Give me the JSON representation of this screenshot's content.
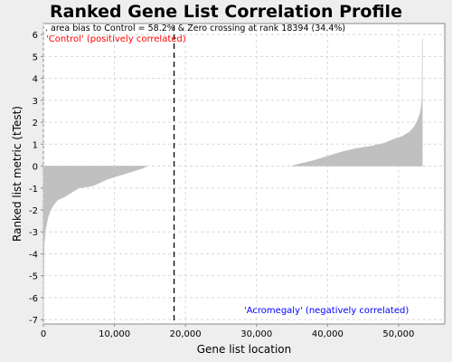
{
  "chart_data": {
    "type": "area",
    "title": "Ranked Gene List Correlation Profile",
    "xlabel": "Gene list location",
    "ylabel": "Ranked list metric (tTest)",
    "xlim": [
      0,
      56500
    ],
    "ylim": [
      -7.2,
      6.5
    ],
    "x_ticks": [
      0,
      10000,
      20000,
      30000,
      40000,
      50000
    ],
    "x_tick_labels": [
      "0",
      "10,000",
      "20,000",
      "30,000",
      "40,000",
      "50,000"
    ],
    "y_ticks": [
      6,
      5,
      4,
      3,
      2,
      1,
      0,
      -1,
      -2,
      -3,
      -4,
      -5,
      -6,
      -7
    ],
    "y_tick_labels": [
      "6",
      "5",
      "4",
      "3",
      "2",
      "1",
      "0",
      "-1",
      "-2",
      "-3",
      "-4",
      "-5",
      "-6",
      "-7"
    ],
    "grid": true,
    "series": [
      {
        "color": "#c0c0c0",
        "x": [
          0,
          100,
          300,
          600,
          1000,
          1500,
          2000,
          3000,
          4000,
          5000,
          6000,
          7000,
          8000,
          9000,
          10000,
          11000,
          12000,
          13000,
          14000,
          14600
        ],
        "y": [
          -7.0,
          -3.6,
          -2.9,
          -2.4,
          -2.0,
          -1.75,
          -1.55,
          -1.4,
          -1.2,
          -1.0,
          -0.95,
          -0.9,
          -0.75,
          -0.6,
          -0.5,
          -0.4,
          -0.3,
          -0.2,
          -0.1,
          0.0
        ]
      },
      {
        "color": "#c0c0c0",
        "x": [
          35000,
          36000,
          38000,
          40000,
          42000,
          44000,
          46000,
          48000,
          49500,
          50500,
          51500,
          52200,
          52700,
          53000,
          53200,
          53300,
          53350
        ],
        "y": [
          0.0,
          0.1,
          0.25,
          0.45,
          0.65,
          0.8,
          0.9,
          1.05,
          1.25,
          1.35,
          1.55,
          1.8,
          2.1,
          2.4,
          2.7,
          3.2,
          5.8
        ]
      }
    ],
    "zero_crossing": 18394,
    "annotations": {
      "stats": ". area bias to Control = 58.2% & Zero crossing at rank 18394 (34.4%)",
      "positive": "'Control' (positively correlated)",
      "negative": "'Acromegaly' (negatively correlated)"
    },
    "colors": {
      "plot_background": "#ffffff",
      "page_background": "#eeeeee",
      "fill": "#c0c0c0",
      "grid": "#d8d8d8",
      "positive_label": "#ff0000",
      "negative_label": "#0000ff",
      "zero_line": "#000000"
    }
  }
}
